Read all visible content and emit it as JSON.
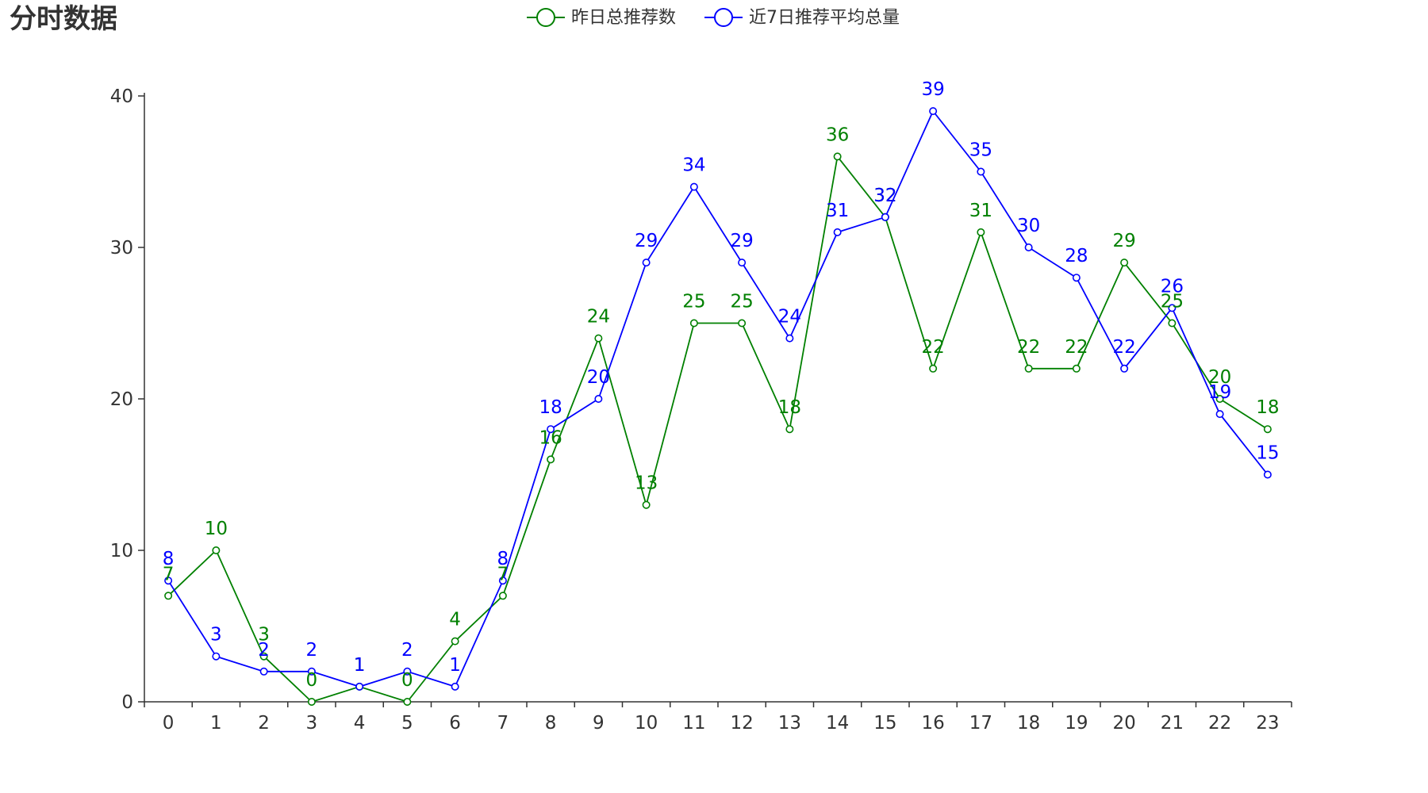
{
  "title": "分时数据",
  "chart_data": {
    "type": "line",
    "title": "分时数据",
    "categories": [
      "0",
      "1",
      "2",
      "3",
      "4",
      "5",
      "6",
      "7",
      "8",
      "9",
      "10",
      "11",
      "12",
      "13",
      "14",
      "15",
      "16",
      "17",
      "18",
      "19",
      "20",
      "21",
      "22",
      "23"
    ],
    "series": [
      {
        "name": "昨日总推荐数",
        "color": "#008000",
        "values": [
          7,
          10,
          3,
          0,
          1,
          0,
          4,
          7,
          16,
          24,
          13,
          25,
          25,
          18,
          36,
          32,
          22,
          31,
          22,
          22,
          29,
          25,
          20,
          18
        ]
      },
      {
        "name": "近7日推荐平均总量",
        "color": "#0000ff",
        "values": [
          8,
          3,
          2,
          2,
          1,
          2,
          1,
          8,
          18,
          20,
          29,
          34,
          29,
          24,
          31,
          32,
          39,
          35,
          30,
          28,
          22,
          26,
          19,
          15
        ]
      }
    ],
    "ylim": [
      0,
      40
    ],
    "yticks": [
      "0",
      "10",
      "20",
      "30",
      "40"
    ],
    "xlabel": "",
    "ylabel": "",
    "legend_position": "top-center",
    "grid": false,
    "data_labels": true
  }
}
